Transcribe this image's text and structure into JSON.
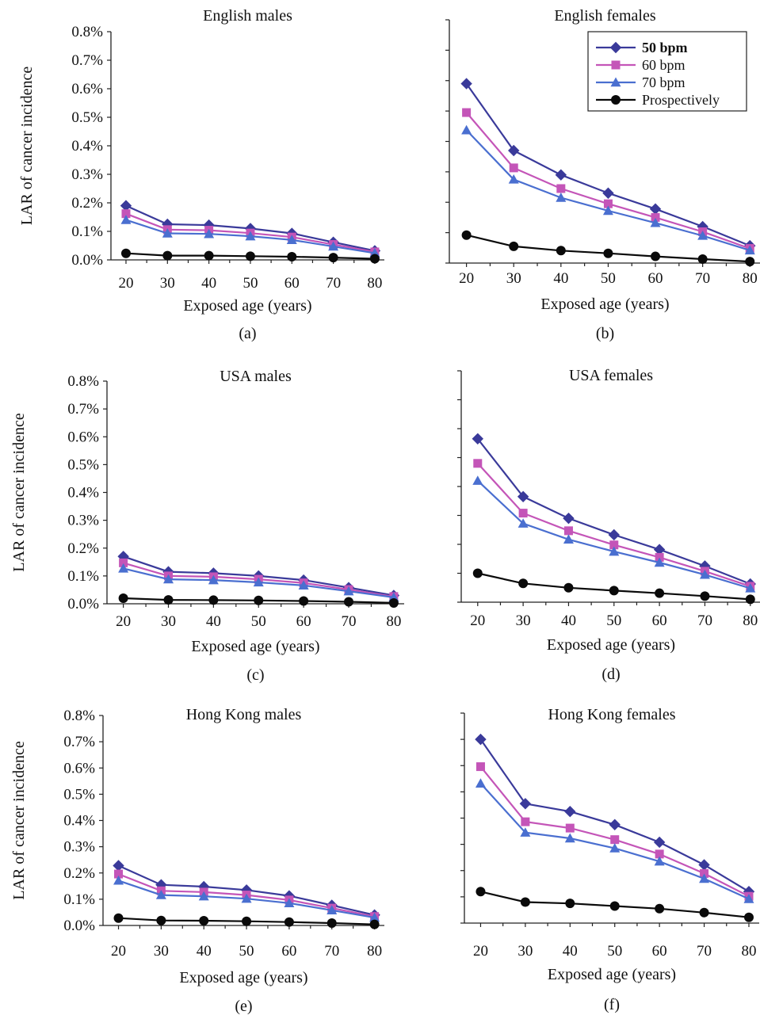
{
  "colors": {
    "50 bpm": "#3a3a9a",
    "60 bpm": "#c455b8",
    "70 bpm": "#4a6fd0",
    "Prospectively": "#0a0a0a"
  },
  "legend": [
    "50 bpm",
    "60 bpm",
    "70 bpm",
    "Prospectively"
  ],
  "chart_data": [
    {
      "type": "line",
      "title": "English males",
      "panel_label": "(a)",
      "xlabel": "Exposed age (years)",
      "ylabel": "LAR of cancer incidence",
      "x": [
        20,
        30,
        40,
        50,
        60,
        70,
        80
      ],
      "ylim": [
        0,
        0.8
      ],
      "yticks": [
        "0.0%",
        "0.1%",
        "0.2%",
        "0.3%",
        "0.4%",
        "0.5%",
        "0.6%",
        "0.7%",
        "0.8%"
      ],
      "series": [
        {
          "name": "50 bpm",
          "marker": "diamond",
          "values": [
            0.19,
            0.125,
            0.122,
            0.11,
            0.093,
            0.062,
            0.032
          ]
        },
        {
          "name": "60 bpm",
          "marker": "square",
          "values": [
            0.162,
            0.106,
            0.104,
            0.094,
            0.08,
            0.054,
            0.028
          ]
        },
        {
          "name": "70 bpm",
          "marker": "triangle",
          "values": [
            0.14,
            0.093,
            0.091,
            0.083,
            0.07,
            0.047,
            0.024
          ]
        },
        {
          "name": "Prospectively",
          "marker": "circle",
          "values": [
            0.023,
            0.015,
            0.015,
            0.013,
            0.011,
            0.008,
            0.004
          ]
        }
      ]
    },
    {
      "type": "line",
      "title": "English females",
      "panel_label": "(b)",
      "xlabel": "Exposed age (years)",
      "ylabel": "",
      "x": [
        20,
        30,
        40,
        50,
        60,
        70,
        80
      ],
      "ylim": [
        0,
        0.8
      ],
      "yticks": [],
      "legend_position": "top-right",
      "series": [
        {
          "name": "50 bpm",
          "marker": "diamond",
          "values": [
            0.59,
            0.37,
            0.29,
            0.23,
            0.178,
            0.12,
            0.057
          ]
        },
        {
          "name": "60 bpm",
          "marker": "square",
          "values": [
            0.495,
            0.313,
            0.245,
            0.195,
            0.15,
            0.103,
            0.048
          ]
        },
        {
          "name": "70 bpm",
          "marker": "triangle",
          "values": [
            0.437,
            0.275,
            0.215,
            0.172,
            0.132,
            0.09,
            0.042
          ]
        },
        {
          "name": "Prospectively",
          "marker": "circle",
          "values": [
            0.092,
            0.055,
            0.041,
            0.032,
            0.022,
            0.013,
            0.005
          ]
        }
      ]
    },
    {
      "type": "line",
      "title": "USA males",
      "panel_label": "(c)",
      "xlabel": "Exposed age (years)",
      "ylabel": "LAR of cancer incidence",
      "x": [
        20,
        30,
        40,
        50,
        60,
        70,
        80
      ],
      "ylim": [
        0,
        0.8
      ],
      "yticks": [
        "0.0%",
        "0.1%",
        "0.2%",
        "0.3%",
        "0.4%",
        "0.5%",
        "0.6%",
        "0.7%",
        "0.8%"
      ],
      "series": [
        {
          "name": "50 bpm",
          "marker": "diamond",
          "values": [
            0.17,
            0.115,
            0.11,
            0.1,
            0.085,
            0.058,
            0.03
          ]
        },
        {
          "name": "60 bpm",
          "marker": "square",
          "values": [
            0.147,
            0.1,
            0.097,
            0.088,
            0.075,
            0.051,
            0.026
          ]
        },
        {
          "name": "70 bpm",
          "marker": "triangle",
          "values": [
            0.127,
            0.088,
            0.085,
            0.077,
            0.066,
            0.045,
            0.023
          ]
        },
        {
          "name": "Prospectively",
          "marker": "circle",
          "values": [
            0.02,
            0.014,
            0.013,
            0.012,
            0.01,
            0.007,
            0.003
          ]
        }
      ]
    },
    {
      "type": "line",
      "title": "USA females",
      "panel_label": "(d)",
      "xlabel": "Exposed age (years)",
      "ylabel": "",
      "x": [
        20,
        30,
        40,
        50,
        60,
        70,
        80
      ],
      "ylim": [
        0,
        0.8
      ],
      "yticks": [],
      "series": [
        {
          "name": "50 bpm",
          "marker": "diamond",
          "values": [
            0.565,
            0.365,
            0.29,
            0.233,
            0.182,
            0.125,
            0.063
          ]
        },
        {
          "name": "60 bpm",
          "marker": "square",
          "values": [
            0.48,
            0.308,
            0.247,
            0.198,
            0.155,
            0.107,
            0.055
          ]
        },
        {
          "name": "70 bpm",
          "marker": "triangle",
          "values": [
            0.42,
            0.272,
            0.217,
            0.175,
            0.137,
            0.095,
            0.048
          ]
        },
        {
          "name": "Prospectively",
          "marker": "circle",
          "values": [
            0.1,
            0.065,
            0.05,
            0.04,
            0.031,
            0.021,
            0.01
          ]
        }
      ]
    },
    {
      "type": "line",
      "title": "Hong Kong males",
      "panel_label": "(e)",
      "xlabel": "Exposed age (years)",
      "ylabel": "LAR of cancer incidence",
      "x": [
        20,
        30,
        40,
        50,
        60,
        70,
        80
      ],
      "ylim": [
        0,
        0.8
      ],
      "yticks": [
        "0.0%",
        "0.1%",
        "0.2%",
        "0.3%",
        "0.4%",
        "0.5%",
        "0.6%",
        "0.7%",
        "0.8%"
      ],
      "series": [
        {
          "name": "50 bpm",
          "marker": "diamond",
          "values": [
            0.228,
            0.155,
            0.148,
            0.135,
            0.113,
            0.077,
            0.04
          ]
        },
        {
          "name": "60 bpm",
          "marker": "square",
          "values": [
            0.196,
            0.132,
            0.127,
            0.116,
            0.097,
            0.066,
            0.034
          ]
        },
        {
          "name": "70 bpm",
          "marker": "triangle",
          "values": [
            0.171,
            0.116,
            0.111,
            0.102,
            0.085,
            0.058,
            0.03
          ]
        },
        {
          "name": "Prospectively",
          "marker": "circle",
          "values": [
            0.028,
            0.019,
            0.018,
            0.016,
            0.013,
            0.009,
            0.004
          ]
        }
      ]
    },
    {
      "type": "line",
      "title": "Hong Kong females",
      "panel_label": "(f)",
      "xlabel": "Exposed age (years)",
      "ylabel": "",
      "x": [
        20,
        30,
        40,
        50,
        60,
        70,
        80
      ],
      "ylim": [
        0,
        0.8
      ],
      "yticks": [],
      "series": [
        {
          "name": "50 bpm",
          "marker": "diamond",
          "values": [
            0.7,
            0.455,
            0.425,
            0.375,
            0.308,
            0.222,
            0.12
          ]
        },
        {
          "name": "60 bpm",
          "marker": "square",
          "values": [
            0.596,
            0.386,
            0.362,
            0.318,
            0.263,
            0.189,
            0.102
          ]
        },
        {
          "name": "70 bpm",
          "marker": "triangle",
          "values": [
            0.532,
            0.345,
            0.323,
            0.285,
            0.235,
            0.169,
            0.092
          ]
        },
        {
          "name": "Prospectively",
          "marker": "circle",
          "values": [
            0.12,
            0.08,
            0.075,
            0.065,
            0.055,
            0.04,
            0.022
          ]
        }
      ]
    }
  ]
}
